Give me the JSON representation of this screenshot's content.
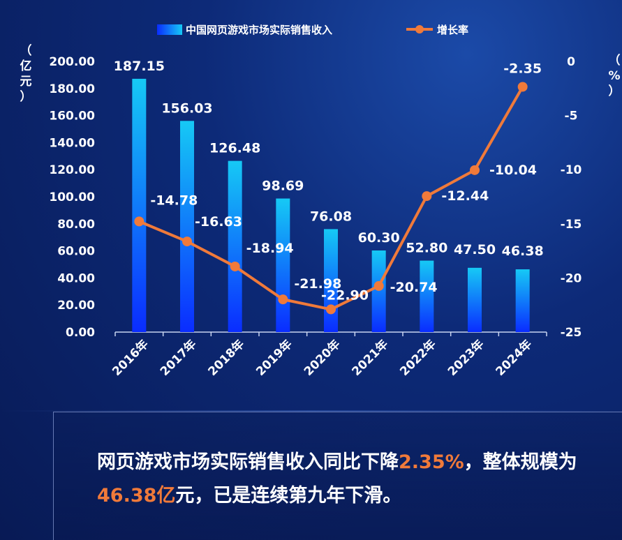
{
  "chart_data": {
    "type": "bar",
    "categories": [
      "2016年",
      "2017年",
      "2018年",
      "2019年",
      "2020年",
      "2021年",
      "2022年",
      "2023年",
      "2024年"
    ],
    "series": [
      {
        "name": "中国网页游戏市场实际销售收入",
        "type": "bar",
        "axis": "left",
        "values": [
          187.15,
          156.03,
          126.48,
          98.69,
          76.08,
          60.3,
          52.8,
          47.5,
          46.38
        ],
        "labels": [
          "187.15",
          "156.03",
          "126.48",
          "98.69",
          "76.08",
          "60.30",
          "52.80",
          "47.50",
          "46.38"
        ],
        "color": "#1a8cff"
      },
      {
        "name": "增长率",
        "type": "line",
        "axis": "right",
        "values": [
          -14.78,
          -16.63,
          -18.94,
          -21.98,
          -22.9,
          -20.74,
          -12.44,
          -10.04,
          -2.35
        ],
        "labels": [
          "-14.78",
          "-16.63",
          "-18.94",
          "-21.98",
          "-22.90",
          "-20.74",
          "-12.44",
          "-10.04",
          "-2.35"
        ],
        "color": "#f07a3a"
      }
    ],
    "y_left": {
      "label": "（亿元）",
      "lim": [
        0,
        200
      ],
      "ticks": [
        "0.00",
        "20.00",
        "40.00",
        "60.00",
        "80.00",
        "100.00",
        "120.00",
        "140.00",
        "160.00",
        "180.00",
        "200.00"
      ]
    },
    "y_right": {
      "label": "（%）",
      "lim": [
        -25,
        0
      ],
      "ticks": [
        "-25",
        "-20",
        "-15",
        "-10",
        "-5",
        "0"
      ]
    },
    "legend_position": "top",
    "grid": false
  },
  "units": {
    "left": "（亿元）",
    "right": "（%）"
  },
  "summary": {
    "part1": "网页游戏市场实际销售收入同比下降",
    "hl1": "2.35%",
    "part2": "，整体规模为",
    "hl2": "46.38亿",
    "part3": "元，已是连续第九年下滑。"
  },
  "colors": {
    "bar_top": "#16c9f5",
    "bar_bottom": "#0a2cff",
    "line": "#f07a3a",
    "highlight": "#f07a3a"
  }
}
